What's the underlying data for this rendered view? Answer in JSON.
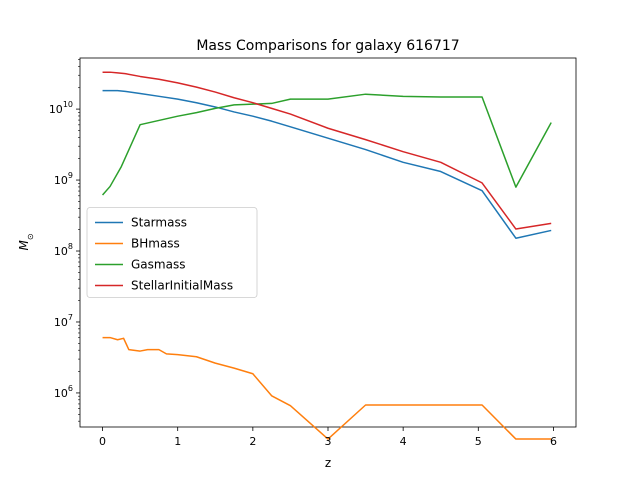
{
  "chart_data": {
    "type": "line",
    "title": "Mass Comparisons for galaxy 616717",
    "xlabel": "z",
    "ylabel": "M⊙",
    "yscale": "log",
    "xlim": [
      -0.3,
      6.3
    ],
    "ylim_log10": [
      5.52,
      10.72
    ],
    "xticks": [
      0,
      1,
      2,
      3,
      4,
      5,
      6
    ],
    "xtick_labels": [
      "0",
      "1",
      "2",
      "3",
      "4",
      "5",
      "6"
    ],
    "yticks_log10": [
      6,
      7,
      8,
      9,
      10
    ],
    "ytick_labels": [
      {
        "base": "10",
        "exp": "6"
      },
      {
        "base": "10",
        "exp": "7"
      },
      {
        "base": "10",
        "exp": "8"
      },
      {
        "base": "10",
        "exp": "9"
      },
      {
        "base": "10",
        "exp": "10"
      }
    ],
    "legend": {
      "position": "center-left"
    },
    "grid": false,
    "series": [
      {
        "name": "Starmass",
        "color": "#1f77b4",
        "x": [
          0,
          0.1,
          0.2,
          0.3,
          0.5,
          0.75,
          1.0,
          1.25,
          1.5,
          1.75,
          2.0,
          2.25,
          2.5,
          3.0,
          3.5,
          4.0,
          4.5,
          5.05,
          5.5,
          5.97
        ],
        "y_log10": [
          10.26,
          10.26,
          10.26,
          10.25,
          10.22,
          10.18,
          10.14,
          10.09,
          10.03,
          9.96,
          9.9,
          9.83,
          9.75,
          9.59,
          9.43,
          9.25,
          9.12,
          8.85,
          8.18,
          8.29
        ]
      },
      {
        "name": "BHmass",
        "color": "#ff7f0e",
        "x": [
          0,
          0.1,
          0.2,
          0.28,
          0.35,
          0.5,
          0.6,
          0.75,
          0.85,
          1.0,
          1.25,
          1.5,
          1.75,
          2.0,
          2.25,
          2.5,
          3.0,
          3.5,
          4.0,
          4.5,
          5.05,
          5.5,
          5.97
        ],
        "y_log10": [
          6.78,
          6.78,
          6.75,
          6.77,
          6.61,
          6.59,
          6.61,
          6.61,
          6.55,
          6.54,
          6.51,
          6.42,
          6.35,
          6.27,
          5.96,
          5.82,
          5.35,
          5.83,
          5.83,
          5.83,
          5.83,
          5.35,
          5.35
        ]
      },
      {
        "name": "Gasmass",
        "color": "#2ca02c",
        "x": [
          0,
          0.1,
          0.25,
          0.5,
          0.75,
          1.0,
          1.25,
          1.5,
          1.75,
          2.0,
          2.25,
          2.5,
          3.0,
          3.5,
          4.0,
          4.5,
          5.05,
          5.5,
          5.97
        ],
        "y_log10": [
          8.79,
          8.91,
          9.19,
          9.78,
          9.84,
          9.9,
          9.95,
          10.01,
          10.06,
          10.07,
          10.08,
          10.14,
          10.14,
          10.21,
          10.18,
          10.17,
          10.17,
          8.9,
          9.81
        ]
      },
      {
        "name": "StellarInitialMass",
        "color": "#d62728",
        "x": [
          0,
          0.1,
          0.2,
          0.3,
          0.5,
          0.75,
          1.0,
          1.25,
          1.5,
          1.75,
          2.0,
          2.25,
          2.5,
          3.0,
          3.5,
          4.0,
          4.5,
          5.05,
          5.5,
          5.97
        ],
        "y_log10": [
          10.52,
          10.52,
          10.51,
          10.5,
          10.46,
          10.42,
          10.37,
          10.31,
          10.24,
          10.16,
          10.09,
          10.01,
          9.93,
          9.73,
          9.57,
          9.4,
          9.25,
          8.96,
          8.31,
          8.39
        ]
      }
    ]
  }
}
